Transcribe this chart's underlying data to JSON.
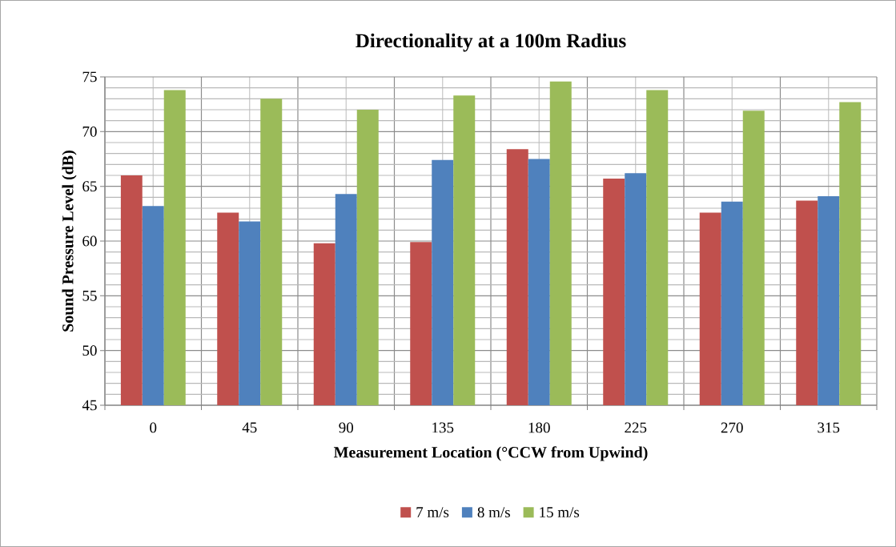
{
  "chart_data": {
    "type": "bar",
    "title": "Directionality at a 100m Radius",
    "xlabel": "Measurement Location (°CCW from Upwind)",
    "ylabel": "Sound Pressure Level (dB)",
    "categories": [
      "0",
      "45",
      "90",
      "135",
      "180",
      "225",
      "270",
      "315"
    ],
    "series": [
      {
        "name": "7 m/s",
        "color": "#c0504d",
        "values": [
          66.0,
          62.6,
          59.8,
          59.9,
          68.4,
          65.7,
          62.6,
          63.7
        ]
      },
      {
        "name": "8 m/s",
        "color": "#4f81bd",
        "values": [
          63.2,
          61.8,
          64.3,
          67.4,
          67.5,
          66.2,
          63.6,
          64.1
        ]
      },
      {
        "name": "15 m/s",
        "color": "#9bbb59",
        "values": [
          73.8,
          73.0,
          72.0,
          73.3,
          74.6,
          73.8,
          71.9,
          72.7
        ]
      }
    ],
    "ylim": [
      45,
      75
    ],
    "yticks": [
      45,
      50,
      55,
      60,
      65,
      70,
      75
    ],
    "grid": true,
    "legend": "bottom"
  }
}
